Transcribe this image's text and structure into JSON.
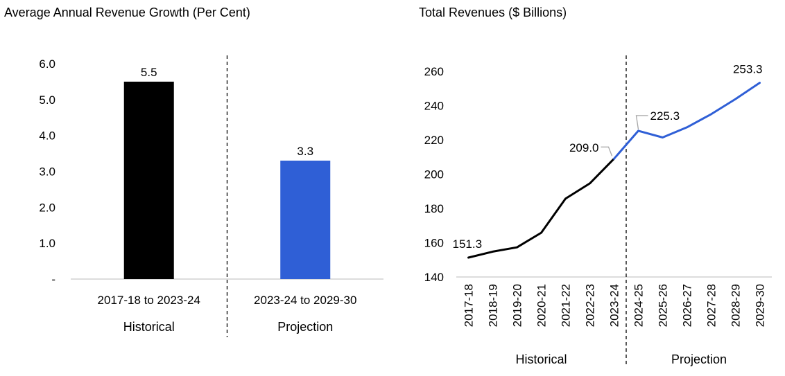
{
  "colors": {
    "historical": "#000000",
    "projection": "#2f5fd6",
    "axis": "#d0d0d0",
    "leader": "#a6a6a6"
  },
  "chart_data": [
    {
      "type": "bar",
      "title": "Average Annual Revenue Growth (Per Cent)",
      "xlabel": "",
      "ylabel": "",
      "categories": [
        "2017-18 to 2023-24",
        "2023-24 to 2029-30"
      ],
      "groups": [
        "Historical",
        "Projection"
      ],
      "values": [
        5.5,
        3.3
      ],
      "data_labels": [
        "5.5",
        "3.3"
      ],
      "ylim": [
        0,
        6
      ],
      "yticks": [
        0,
        1,
        2,
        3,
        4,
        5,
        6
      ],
      "ytick_labels": [
        "-",
        "1.0",
        "2.0",
        "3.0",
        "4.0",
        "5.0",
        "6.0"
      ],
      "grid": false,
      "divider_between_groups": true
    },
    {
      "type": "line",
      "title": "Total Revenues ($ Billions)",
      "xlabel": "",
      "ylabel": "",
      "x": [
        "2017-18",
        "2018-19",
        "2019-20",
        "2020-21",
        "2021-22",
        "2022-23",
        "2023-24",
        "2024-25",
        "2025-26",
        "2026-27",
        "2027-28",
        "2028-29",
        "2029-30"
      ],
      "series": [
        {
          "group": "Historical",
          "values": [
            151.3,
            154.8,
            157.3,
            165.8,
            185.7,
            194.6,
            209.0,
            null,
            null,
            null,
            null,
            null,
            null
          ]
        },
        {
          "group": "Projection",
          "values": [
            null,
            null,
            null,
            null,
            null,
            null,
            209.0,
            225.3,
            221.4,
            227.3,
            235.0,
            243.8,
            253.3
          ]
        }
      ],
      "data_labels": [
        {
          "x": "2017-18",
          "text": "151.3"
        },
        {
          "x": "2023-24",
          "text": "209.0"
        },
        {
          "x": "2024-25",
          "text": "225.3"
        },
        {
          "x": "2029-30",
          "text": "253.3"
        }
      ],
      "groups": [
        "Historical",
        "Projection"
      ],
      "ylim": [
        140,
        260
      ],
      "yticks": [
        140,
        160,
        180,
        200,
        220,
        240,
        260
      ],
      "grid": false,
      "divider_after": "2023-24"
    }
  ]
}
